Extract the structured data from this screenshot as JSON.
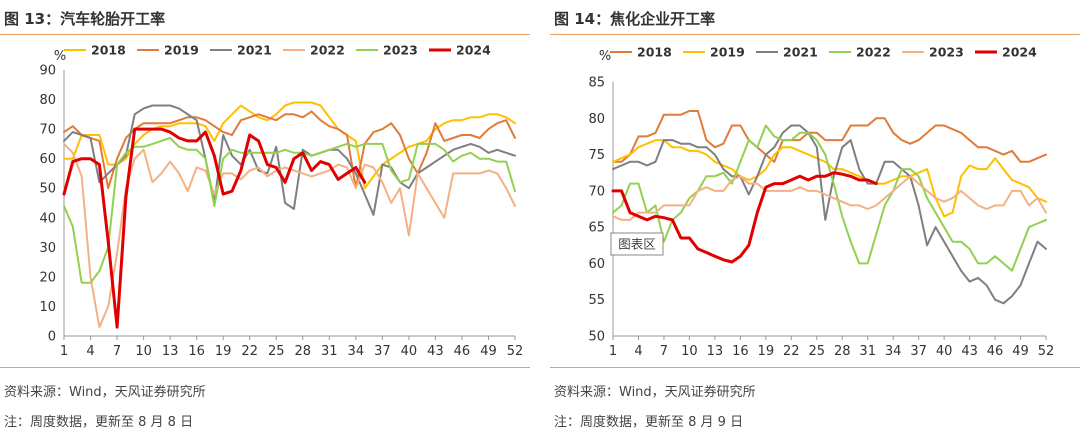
{
  "charts": [
    {
      "title": "图 13：汽车轮胎开工率",
      "source": "资料来源：Wind，天风证券研究所",
      "update_note": "注：周度数据，更新至 8 月 8 日"
    },
    {
      "title": "图 14：焦化企业开工率",
      "source": "资料来源：Wind，天风证券研究所",
      "update_note": "注：周度数据，更新至 8 月 9 日"
    }
  ],
  "chart_data": [
    {
      "type": "line",
      "title": "汽车轮胎开工率",
      "unit_label": "%",
      "ylim": [
        0,
        90
      ],
      "yticks": [
        0,
        10,
        20,
        30,
        40,
        50,
        60,
        70,
        80,
        90
      ],
      "xlim": [
        1,
        52
      ],
      "xticks": [
        1,
        4,
        7,
        10,
        13,
        16,
        19,
        22,
        25,
        28,
        31,
        34,
        37,
        40,
        43,
        46,
        49,
        52
      ],
      "grid": false,
      "legend": "top",
      "series": [
        {
          "name": "2018",
          "color": "#FFC000",
          "width": 2,
          "values": [
            60,
            60,
            68,
            68,
            68,
            58,
            58,
            60,
            65,
            68,
            70,
            71,
            71,
            72,
            72,
            72,
            71,
            66,
            72,
            75,
            78,
            76,
            74,
            73,
            75,
            78,
            79,
            79,
            79,
            78,
            74,
            70,
            68,
            66,
            50,
            54,
            58,
            60,
            62,
            64,
            65,
            66,
            70,
            72,
            73,
            73,
            74,
            74,
            75,
            75,
            74,
            72
          ]
        },
        {
          "name": "2019",
          "color": "#E07B39",
          "width": 2,
          "values": [
            69,
            71,
            68,
            67,
            66,
            50,
            60,
            67,
            70,
            72,
            72,
            72,
            72,
            73,
            74,
            74,
            73,
            71,
            69,
            68,
            73,
            74,
            75,
            74,
            73,
            75,
            75,
            74,
            76,
            73,
            71,
            70,
            68,
            50,
            65,
            69,
            70,
            72,
            68,
            60,
            55,
            62,
            72,
            66,
            67,
            68,
            68,
            67,
            70,
            72,
            73,
            67
          ]
        },
        {
          "name": "2021",
          "color": "#7F7F7F",
          "width": 2,
          "values": [
            66,
            69,
            68,
            67,
            52,
            55,
            58,
            61,
            75,
            77,
            78,
            78,
            78,
            77,
            75,
            73,
            60,
            45,
            68,
            61,
            58,
            63,
            56,
            55,
            64,
            45,
            43,
            63,
            61,
            62,
            63,
            63,
            60,
            55,
            48,
            41,
            58,
            57,
            52,
            50,
            55,
            57,
            59,
            61,
            63,
            64,
            65,
            64,
            62,
            63,
            62,
            61
          ]
        },
        {
          "name": "2022",
          "color": "#F4B183",
          "width": 2,
          "values": [
            65,
            62,
            54,
            20,
            3,
            10,
            28,
            50,
            60,
            63,
            52,
            55,
            59,
            55,
            49,
            57,
            56,
            48,
            55,
            55,
            53,
            56,
            57,
            54,
            56,
            57,
            56,
            55,
            54,
            55,
            56,
            58,
            57,
            50,
            58,
            57,
            52,
            45,
            50,
            34,
            55,
            50,
            45,
            40,
            55,
            55,
            55,
            55,
            56,
            55,
            50,
            44
          ]
        },
        {
          "name": "2023",
          "color": "#92D050",
          "width": 2,
          "values": [
            44,
            37,
            18,
            18,
            22,
            30,
            58,
            62,
            64,
            64,
            65,
            66,
            67,
            64,
            63,
            63,
            60,
            44,
            60,
            63,
            62,
            62,
            62,
            62,
            62,
            63,
            62,
            62,
            61,
            62,
            63,
            64,
            65,
            64,
            65,
            65,
            65,
            56,
            52,
            53,
            65,
            65,
            65,
            63,
            59,
            61,
            62,
            60,
            60,
            59,
            59,
            49
          ]
        },
        {
          "name": "2024",
          "color": "#E00000",
          "width": 3,
          "values": [
            48,
            59,
            60,
            60,
            58,
            32,
            3,
            47,
            70,
            70,
            70,
            70,
            69,
            67,
            66,
            66,
            69,
            61,
            48,
            49,
            56,
            68,
            66,
            58,
            57,
            52,
            60,
            62,
            56,
            59,
            58,
            53,
            55,
            57,
            52,
            null,
            null,
            null,
            null,
            null,
            null,
            null,
            null,
            null,
            null,
            null,
            null,
            null,
            null,
            null,
            null,
            null
          ]
        }
      ]
    },
    {
      "type": "line",
      "title": "焦化企业开工率",
      "unit_label": "%",
      "ylim": [
        50,
        85
      ],
      "yticks": [
        50,
        55,
        60,
        65,
        70,
        75,
        80,
        85
      ],
      "xlim": [
        1,
        52
      ],
      "xticks": [
        1,
        4,
        7,
        10,
        13,
        16,
        19,
        22,
        25,
        28,
        31,
        34,
        37,
        40,
        43,
        46,
        49,
        52
      ],
      "grid": false,
      "legend": "top",
      "annotation": "图表区",
      "series": [
        {
          "name": "2018",
          "color": "#E07B39",
          "width": 2,
          "values": [
            74,
            74,
            75,
            77.5,
            77.5,
            78,
            80.5,
            80.5,
            80.5,
            81,
            81,
            77,
            76,
            76.5,
            79,
            79,
            77,
            76,
            75,
            74,
            77,
            77,
            77,
            78,
            78,
            77,
            77,
            77,
            79,
            79,
            79,
            80,
            80,
            78,
            77,
            76.5,
            77,
            78,
            79,
            79,
            78.5,
            78,
            77,
            76,
            76,
            75.5,
            75,
            75.5,
            74,
            74,
            74.5,
            75
          ]
        },
        {
          "name": "2019",
          "color": "#FFC000",
          "width": 2,
          "values": [
            74,
            74.5,
            75,
            76,
            76.5,
            77,
            77,
            76,
            76,
            75.5,
            75.5,
            75,
            74,
            73.5,
            73,
            72,
            71.5,
            72,
            73,
            75,
            76,
            76,
            75.5,
            75,
            74.5,
            74,
            73,
            73,
            72.5,
            72,
            71.5,
            71,
            71,
            71.5,
            72,
            72,
            72.5,
            73,
            69,
            66.5,
            67,
            72,
            73.5,
            73,
            73,
            74.5,
            73,
            71.5,
            71,
            70.5,
            69,
            68.5
          ]
        },
        {
          "name": "2021",
          "color": "#7F7F7F",
          "width": 2,
          "values": [
            73,
            73.5,
            74,
            74,
            73.5,
            74,
            77,
            77,
            76.5,
            76.5,
            76,
            76,
            75,
            73,
            72,
            72,
            69.5,
            72,
            75,
            76,
            78,
            79,
            79,
            78,
            76,
            66,
            72,
            76,
            77,
            73,
            71,
            71,
            74,
            74,
            73,
            72,
            68,
            62.5,
            65,
            63,
            61,
            59,
            57.5,
            58,
            57,
            55,
            54.5,
            55.5,
            57,
            60,
            63,
            62
          ]
        },
        {
          "name": "2022",
          "color": "#92D050",
          "width": 2,
          "values": [
            67,
            68,
            71,
            71,
            67,
            68,
            63,
            66,
            67,
            69,
            70,
            72,
            72,
            72.5,
            71,
            74,
            77,
            76,
            79,
            77.5,
            77,
            77,
            78,
            78,
            77,
            75,
            71,
            66.5,
            63,
            60,
            60,
            64,
            68,
            70,
            73,
            73,
            72,
            69,
            67,
            65,
            63,
            63,
            62,
            60,
            60,
            61,
            60,
            59,
            62,
            65,
            65.5,
            66
          ]
        },
        {
          "name": "2023",
          "color": "#F4B183",
          "width": 2,
          "values": [
            66.5,
            66,
            66,
            67,
            67,
            67,
            68,
            68,
            68,
            68,
            70,
            70.5,
            70,
            70,
            71.5,
            72,
            71,
            71,
            70,
            70,
            70,
            70,
            70.5,
            70,
            70,
            69.5,
            69,
            68.5,
            68,
            68,
            67.5,
            68,
            69,
            70,
            71,
            72,
            71,
            70,
            69,
            68.5,
            69,
            70,
            69,
            68,
            67.5,
            68,
            68,
            70,
            70,
            68,
            69,
            67
          ]
        },
        {
          "name": "2024",
          "color": "#E00000",
          "width": 3,
          "values": [
            70,
            70,
            67,
            66.5,
            66,
            66.5,
            66.3,
            66,
            63.5,
            63.5,
            62,
            61.5,
            61,
            60.5,
            60.2,
            61,
            62.5,
            67,
            70.5,
            71,
            71,
            71.5,
            72,
            71.5,
            72,
            72,
            72.5,
            72.3,
            72,
            71.5,
            71.5,
            71,
            null,
            null,
            null,
            null,
            null,
            null,
            null,
            null,
            null,
            null,
            null,
            null,
            null,
            null,
            null,
            null,
            null,
            null,
            null,
            null
          ]
        }
      ]
    }
  ]
}
